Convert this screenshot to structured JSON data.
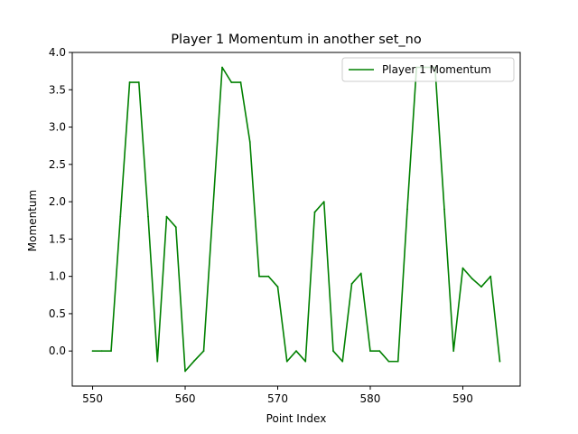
{
  "chart_data": {
    "type": "line",
    "title": "Player 1 Momentum in another set_no",
    "xlabel": "Point Index",
    "ylabel": "Momentum",
    "xlim": [
      547.8,
      596.2
    ],
    "ylim": [
      -0.47,
      4.0
    ],
    "xticks": [
      550,
      560,
      570,
      580,
      590
    ],
    "yticks": [
      0.0,
      0.5,
      1.0,
      1.5,
      2.0,
      2.5,
      3.0,
      3.5,
      4.0
    ],
    "x_tick_labels": [
      "550",
      "560",
      "570",
      "580",
      "590"
    ],
    "y_tick_labels": [
      "0.0",
      "0.5",
      "1.0",
      "1.5",
      "2.0",
      "2.5",
      "3.0",
      "3.5",
      "4.0"
    ],
    "grid": false,
    "legend_position": "top-right",
    "series": [
      {
        "name": "Player 1 Momentum",
        "color": "#008000",
        "x": [
          550,
          551,
          552,
          553,
          554,
          555,
          556,
          557,
          558,
          559,
          560,
          561,
          562,
          563,
          564,
          565,
          566,
          567,
          568,
          569,
          570,
          571,
          572,
          573,
          574,
          575,
          576,
          577,
          578,
          579,
          580,
          581,
          582,
          583,
          584,
          585,
          586,
          587,
          588,
          589,
          590,
          591,
          592,
          593,
          594
        ],
        "values": [
          0.0,
          0.0,
          0.0,
          1.8,
          3.6,
          3.6,
          1.8,
          -0.14,
          1.8,
          1.66,
          -0.27,
          -0.13,
          0.0,
          1.9,
          3.8,
          3.6,
          3.6,
          2.8,
          1.0,
          1.0,
          0.86,
          -0.14,
          0.0,
          -0.14,
          1.86,
          2.0,
          0.0,
          -0.14,
          0.9,
          1.04,
          0.0,
          0.0,
          -0.14,
          -0.14,
          1.9,
          3.8,
          3.8,
          3.8,
          1.9,
          0.0,
          1.11,
          0.97,
          0.86,
          1.0,
          -0.14
        ]
      }
    ]
  }
}
